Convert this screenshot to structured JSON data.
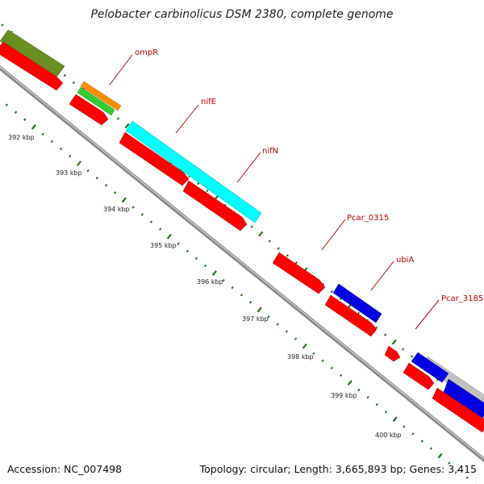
{
  "title": "Pelobacter carbinolicus DSM 2380, complete genome",
  "footer": {
    "accession": "Accession: NC_007498",
    "topology": "Topology: circular; Length: 3,665,893 bp; Genes: 3,415"
  },
  "gene_labels": [
    "ompR",
    "nifE",
    "nifN",
    "Pcar_0315",
    "ubiA",
    "Pcar_3185"
  ],
  "tick_labels": [
    "392 kbp",
    "393 kbp",
    "394 kbp",
    "395 kbp",
    "396 kbp",
    "397 kbp",
    "398 kbp",
    "399 kbp",
    "400 kbp"
  ],
  "colors": {
    "cds": "#ff0000",
    "cyan_feature": "#00ffff",
    "blue_feature": "#0000e0",
    "olive_feature": "#6b8e23",
    "orange_feature": "#ff8c00",
    "green_feature": "#33cc33",
    "gray_feature": "#c0c0c0",
    "backbone": "#888888",
    "ticks": "#1a7a1a",
    "label_text": "#c00000"
  }
}
